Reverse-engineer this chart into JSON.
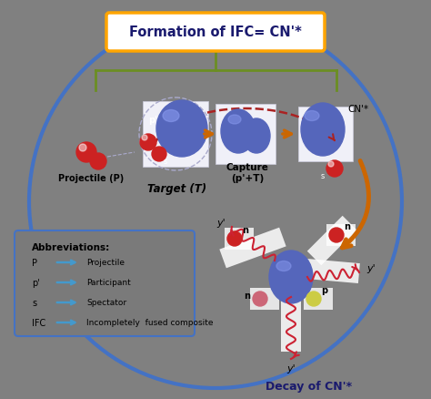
{
  "bg_color": "#808080",
  "circle_color": "#4472c4",
  "title_text": "Formation of IFC= CN'*",
  "title_box_fill": "#ffffff",
  "title_box_edge": "#ffa500",
  "title_text_color": "#1a1a6e",
  "nuclear_blue": "#5566bb",
  "nuclear_highlight": "#8899ee",
  "red_particle": "#cc2222",
  "pink_particle": "#cc6677",
  "yellow_particle": "#cccc44",
  "bracket_color": "#6b8e23",
  "arrow_color": "#cc6600",
  "dashed_arc_color": "#aa2222",
  "decay_text_color": "#1a1a6e",
  "abbrev_box_fill": "#7a7a7a",
  "abbrev_box_edge": "#4472c4",
  "abbrev_arrow_color": "#4499cc",
  "label_color": "#000000",
  "white_box": "#f0f0f8",
  "projectile_label": "Projectile (P)",
  "target_label": "Target (T)",
  "capture_label": "Capture\n(p'+T)",
  "cn_label": "CN'*",
  "decay_label": "Decay of CN'*",
  "abbrev_title": "Abbreviations:",
  "abbrev_entries": [
    [
      "P",
      "Projectile"
    ],
    [
      "p'",
      "Participant"
    ],
    [
      "s",
      "Spectator"
    ],
    [
      "IFC",
      "Incompletely  fused composite"
    ]
  ],
  "figw": 4.74,
  "figh": 4.39,
  "dpi": 100
}
